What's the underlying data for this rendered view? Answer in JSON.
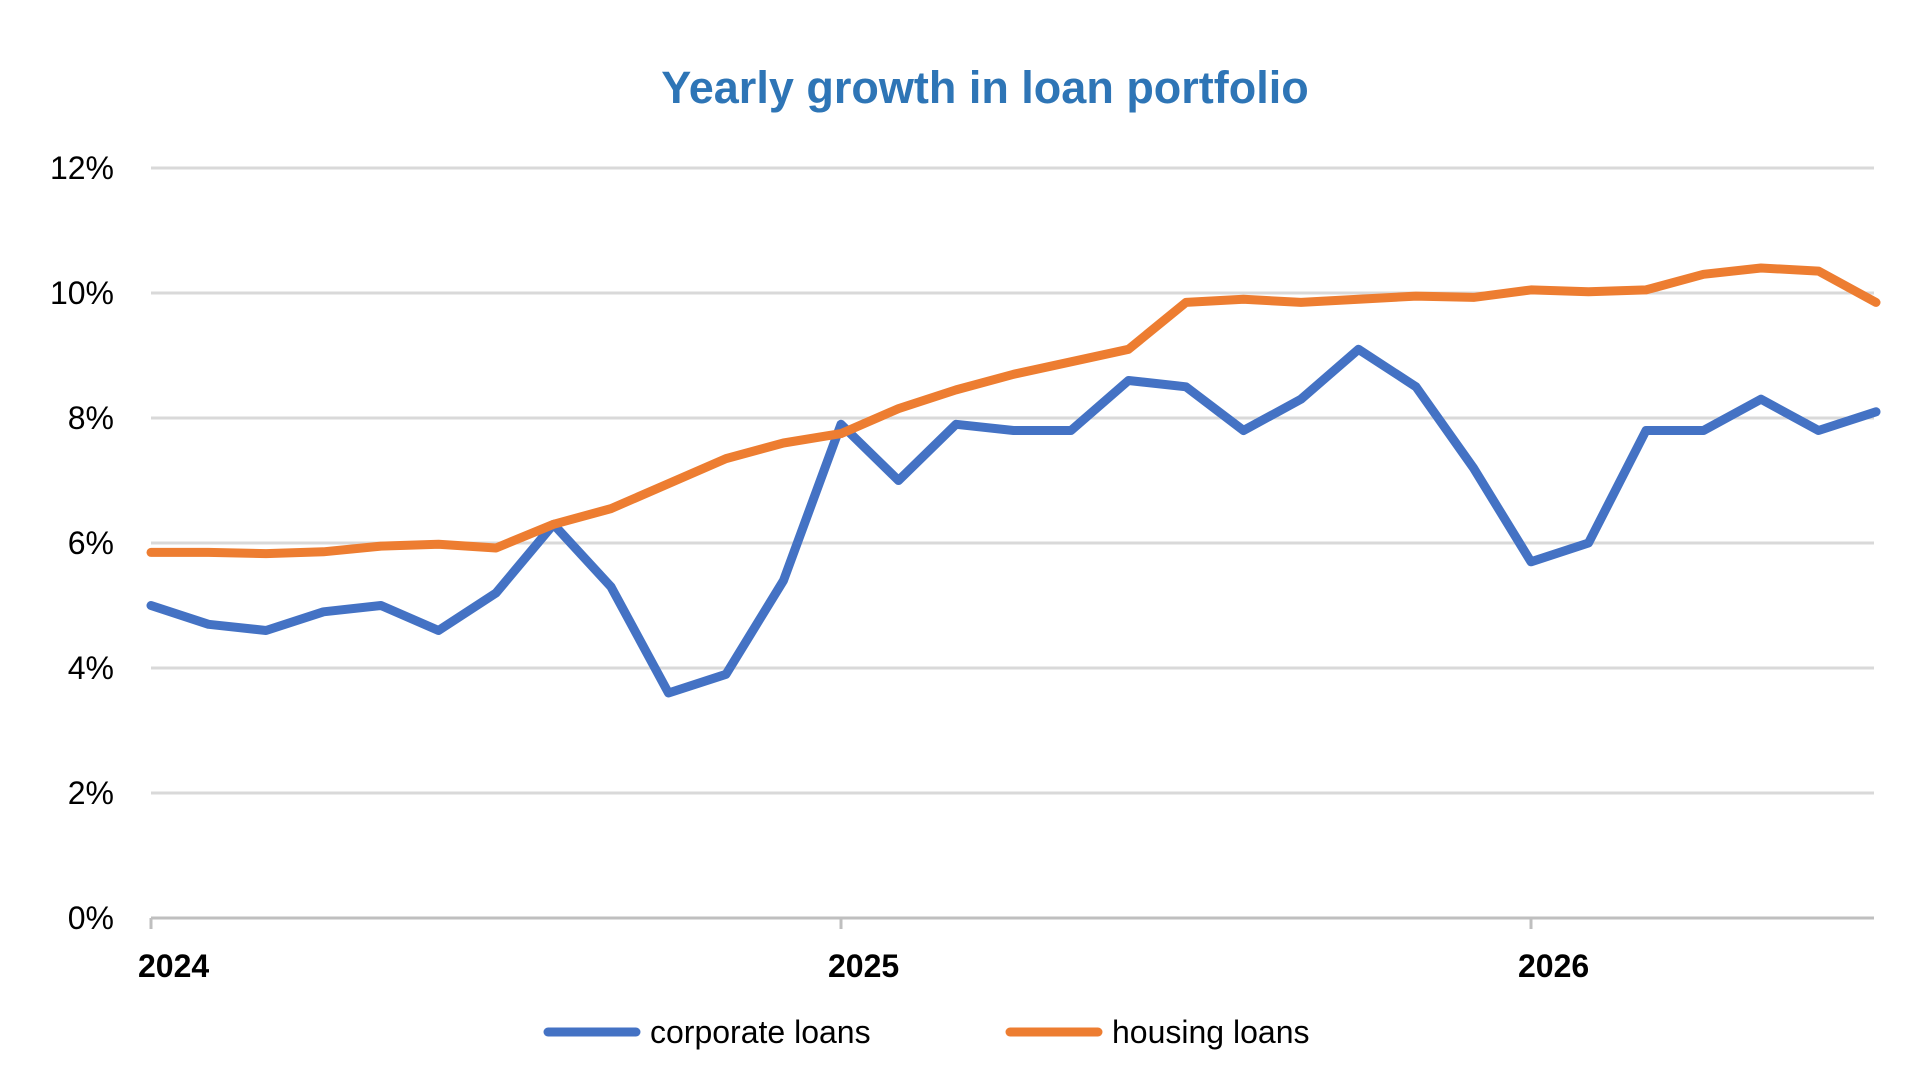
{
  "colors": {
    "title": "#2E75B6",
    "corporate": "#4472C4",
    "housing": "#ED7D31",
    "grid": "#D9D9D9",
    "axis": "#BFBFBF"
  },
  "chart_data": {
    "type": "line",
    "title": "Yearly growth in loan portfolio",
    "xlabel": "",
    "ylabel": "",
    "ylim": [
      0,
      12
    ],
    "y_ticks": [
      0,
      2,
      4,
      6,
      8,
      10,
      12
    ],
    "y_tick_labels": [
      "0%",
      "2%",
      "4%",
      "6%",
      "8%",
      "10%",
      "12%"
    ],
    "x_range": [
      "2024-01",
      "2026-06"
    ],
    "x_tick_labels": [
      "2024",
      "2025",
      "2026"
    ],
    "x_ticks": [
      "2024-01",
      "2025-01",
      "2026-01"
    ],
    "grid": true,
    "legend_position": "bottom",
    "x": [
      "2024-01",
      "2024-02",
      "2024-03",
      "2024-04",
      "2024-05",
      "2024-06",
      "2024-07",
      "2024-08",
      "2024-09",
      "2024-10",
      "2024-11",
      "2024-12",
      "2025-01",
      "2025-02",
      "2025-03",
      "2025-04",
      "2025-05",
      "2025-06",
      "2025-07",
      "2025-08",
      "2025-09",
      "2025-10",
      "2025-11",
      "2025-12",
      "2026-01",
      "2026-02",
      "2026-03",
      "2026-04",
      "2026-05",
      "2026-06",
      "2026-07"
    ],
    "series": [
      {
        "name": "corporate loans",
        "values": [
          5.0,
          4.7,
          4.6,
          4.9,
          5.0,
          4.6,
          5.2,
          6.3,
          5.3,
          3.6,
          3.9,
          5.4,
          7.9,
          7.0,
          7.9,
          7.8,
          7.8,
          8.6,
          8.5,
          7.8,
          8.3,
          9.1,
          8.5,
          7.2,
          5.7,
          6.0,
          7.8,
          7.8,
          8.3,
          7.8,
          8.1
        ]
      },
      {
        "name": "housing loans",
        "values": [
          5.85,
          5.85,
          5.83,
          5.86,
          5.95,
          5.98,
          5.92,
          6.3,
          6.55,
          6.95,
          7.35,
          7.6,
          7.75,
          8.15,
          8.45,
          8.7,
          8.9,
          9.1,
          9.85,
          9.9,
          9.85,
          9.9,
          9.95,
          9.93,
          10.05,
          10.02,
          10.05,
          10.3,
          10.4,
          10.35,
          9.85
        ]
      }
    ]
  }
}
